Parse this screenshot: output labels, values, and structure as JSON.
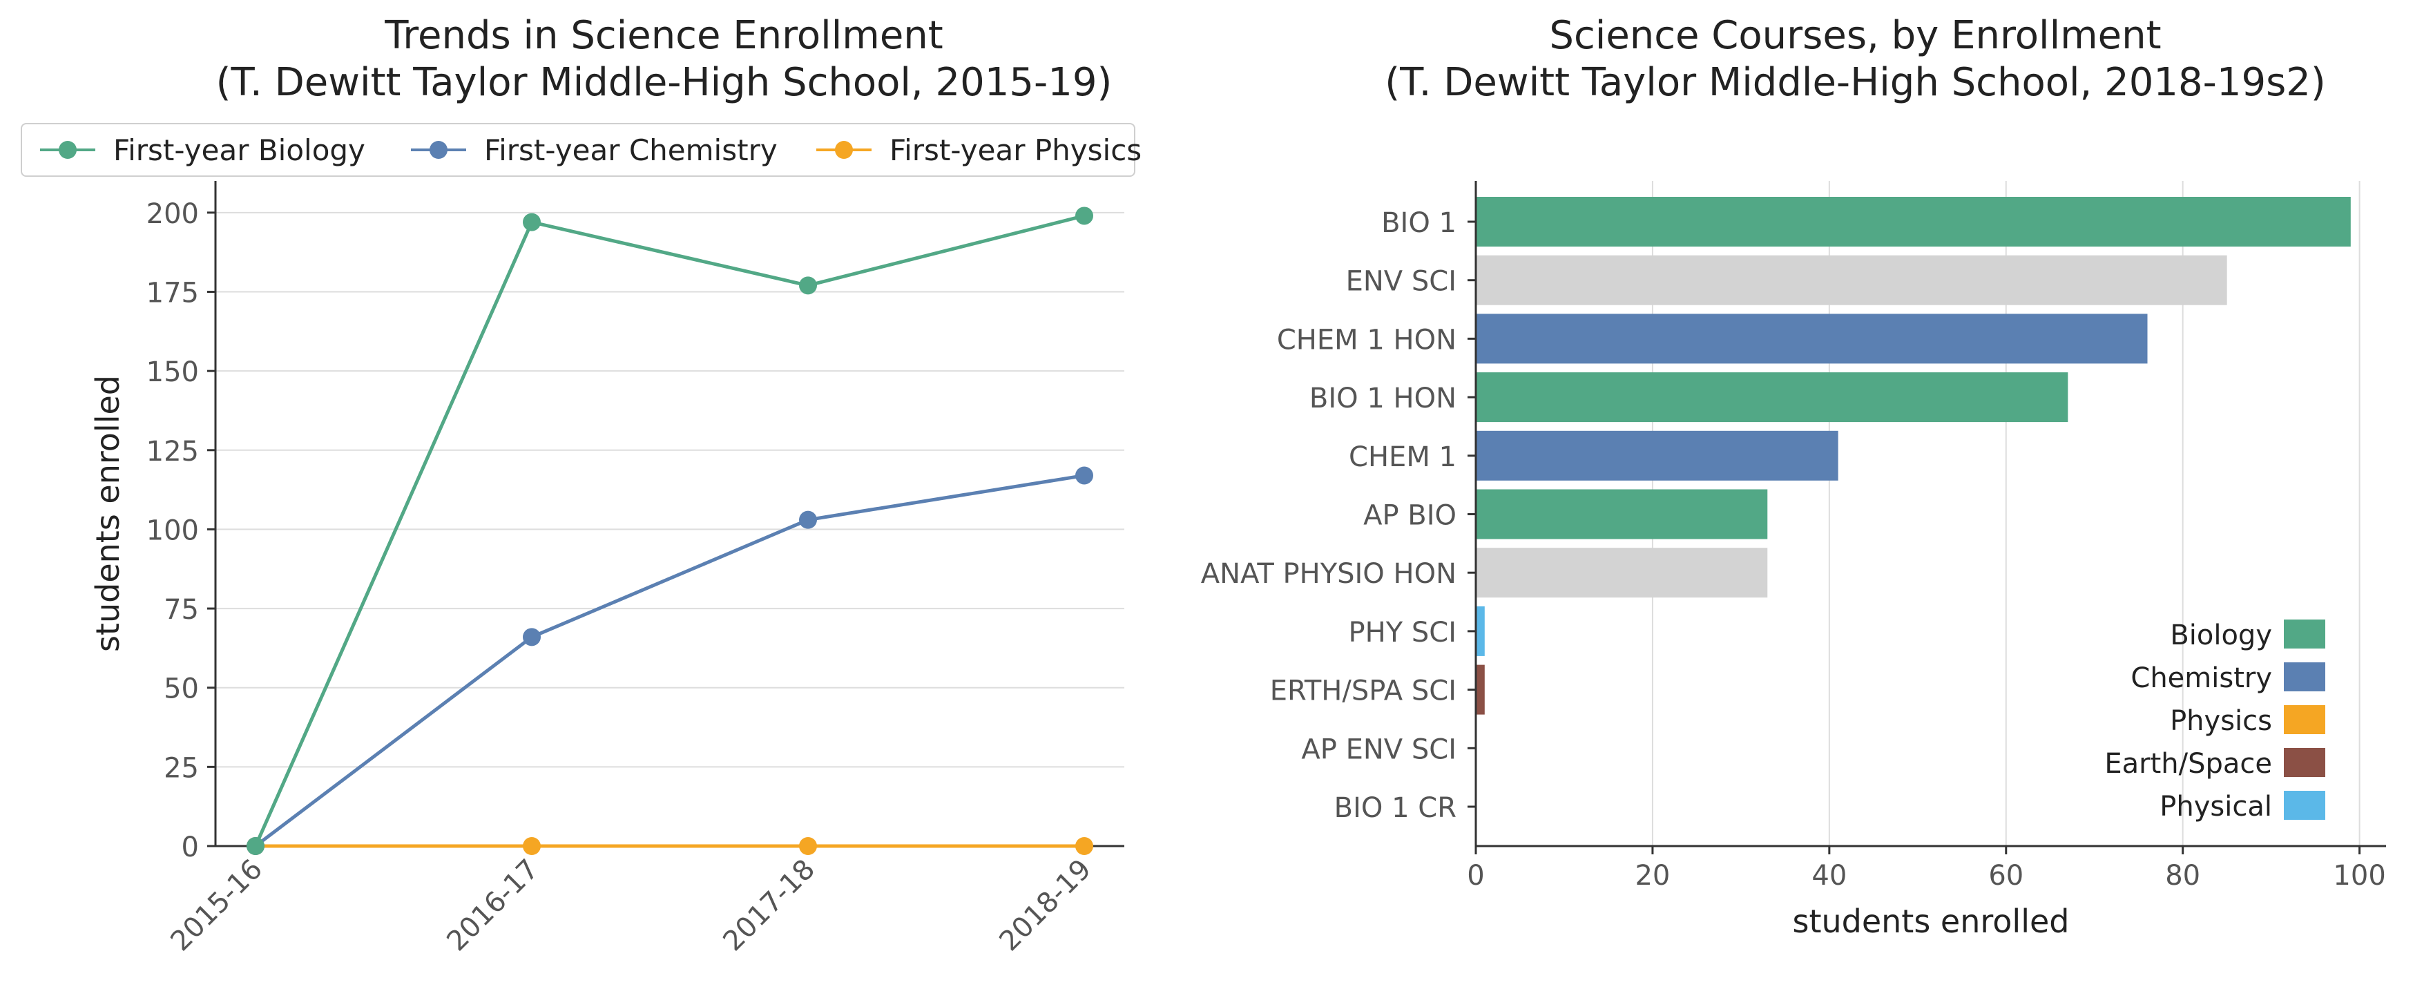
{
  "charts": {
    "left": {
      "title_line1": "Trends in Science Enrollment",
      "title_line2": "(T. Dewitt Taylor Middle-High School, 2015-19)",
      "ylabel": "students enrolled",
      "legend": [
        "First-year Biology",
        "First-year Chemistry",
        "First-year Physics"
      ]
    },
    "right": {
      "title_line1": "Science Courses, by Enrollment",
      "title_line2": "(T. Dewitt Taylor Middle-High School, 2018-19s2)",
      "xlabel": "students enrolled",
      "legend": [
        "Biology",
        "Chemistry",
        "Physics",
        "Earth/Space",
        "Physical"
      ]
    }
  },
  "colors": {
    "biology": "#52a886",
    "chemistry": "#5b80b2",
    "physics": "#f5a623",
    "earth_space": "#8b5045",
    "physical": "#5bb8e8",
    "other": "#d3d3d3"
  },
  "chart_data": [
    {
      "type": "line",
      "title": "Trends in Science Enrollment (T. Dewitt Taylor Middle-High School, 2015-19)",
      "xlabel": "",
      "ylabel": "students enrolled",
      "categories": [
        "2015-16",
        "2016-17",
        "2017-18",
        "2018-19"
      ],
      "ylim": [
        0,
        210
      ],
      "yticks": [
        0,
        25,
        50,
        75,
        100,
        125,
        150,
        175,
        200
      ],
      "grid": "horizontal",
      "legend_position": "top",
      "series": [
        {
          "name": "First-year Biology",
          "color": "#52a886",
          "values": [
            0,
            197,
            177,
            199
          ]
        },
        {
          "name": "First-year Chemistry",
          "color": "#5b80b2",
          "values": [
            0,
            66,
            103,
            117
          ]
        },
        {
          "name": "First-year Physics",
          "color": "#f5a623",
          "values": [
            0,
            0,
            0,
            0
          ]
        }
      ]
    },
    {
      "type": "bar",
      "orientation": "horizontal",
      "title": "Science Courses, by Enrollment (T. Dewitt Taylor Middle-High School, 2018-19s2)",
      "xlabel": "students enrolled",
      "ylabel": "",
      "xlim": [
        0,
        103
      ],
      "xticks": [
        0,
        20,
        40,
        60,
        80,
        100
      ],
      "grid": "vertical",
      "legend_position": "lower right",
      "categories": [
        "BIO 1",
        "ENV SCI",
        "CHEM 1 HON",
        "BIO 1 HON",
        "CHEM 1",
        "AP BIO",
        "ANAT PHYSIO HON",
        "PHY SCI",
        "ERTH/SPA SCI",
        "AP ENV SCI",
        "BIO 1 CR"
      ],
      "values": [
        99,
        85,
        76,
        67,
        41,
        33,
        33,
        1,
        1,
        0,
        0
      ],
      "bar_colors": [
        "#52a886",
        "#d3d3d3",
        "#5b80b2",
        "#52a886",
        "#5b80b2",
        "#52a886",
        "#d3d3d3",
        "#5bb8e8",
        "#8b5045",
        "#d3d3d3",
        "#d3d3d3"
      ],
      "legend": [
        {
          "name": "Biology",
          "color": "#52a886"
        },
        {
          "name": "Chemistry",
          "color": "#5b80b2"
        },
        {
          "name": "Physics",
          "color": "#f5a623"
        },
        {
          "name": "Earth/Space",
          "color": "#8b5045"
        },
        {
          "name": "Physical",
          "color": "#5bb8e8"
        }
      ]
    }
  ]
}
